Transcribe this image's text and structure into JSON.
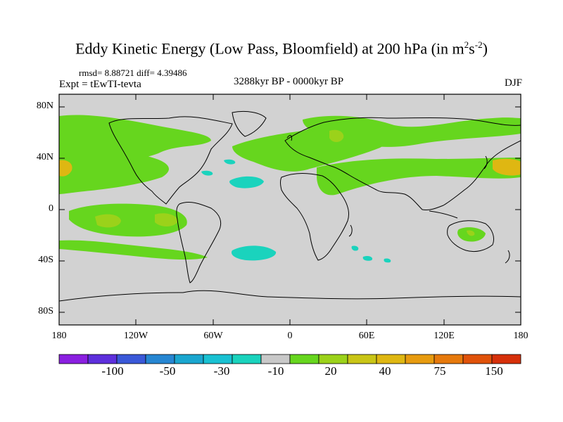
{
  "title": "Eddy Kinetic Energy (Low Pass, Bloomfield) at 200 hPa (in m",
  "title_unit_exp1": "2",
  "title_unit_mid": "s",
  "title_unit_exp2": "-2",
  "title_close": ")",
  "stats": "rmsd= 8.88721 diff= 4.39486",
  "experiment": "Expt = tEwTI-tevta",
  "period": "3288kyr BP - 0000kyr BP",
  "season": "DJF",
  "lat_labels": [
    "80N",
    "40N",
    "0",
    "40S",
    "80S"
  ],
  "lon_labels": [
    "180",
    "120W",
    "60W",
    "0",
    "60E",
    "120E",
    "180"
  ],
  "colorbar": {
    "colors": [
      "#8a1fe0",
      "#5d2fdc",
      "#3a58d8",
      "#2686d2",
      "#1aa6cf",
      "#19c1d2",
      "#1ad3bd",
      "#c8c8c8",
      "#66d61e",
      "#9bd21a",
      "#c9c516",
      "#dfb712",
      "#e79b0f",
      "#e6790c",
      "#e0520a",
      "#d6300a"
    ],
    "labels": [
      "-100",
      "-50",
      "-30",
      "-10",
      "20",
      "40",
      "75",
      "150"
    ]
  },
  "colors": {
    "land_ocean": "#d2d2d2",
    "positive_low": "#66d61e",
    "positive_mid": "#9bd21a",
    "positive_high": "#dfb712",
    "negative_low": "#1ad3bd"
  }
}
